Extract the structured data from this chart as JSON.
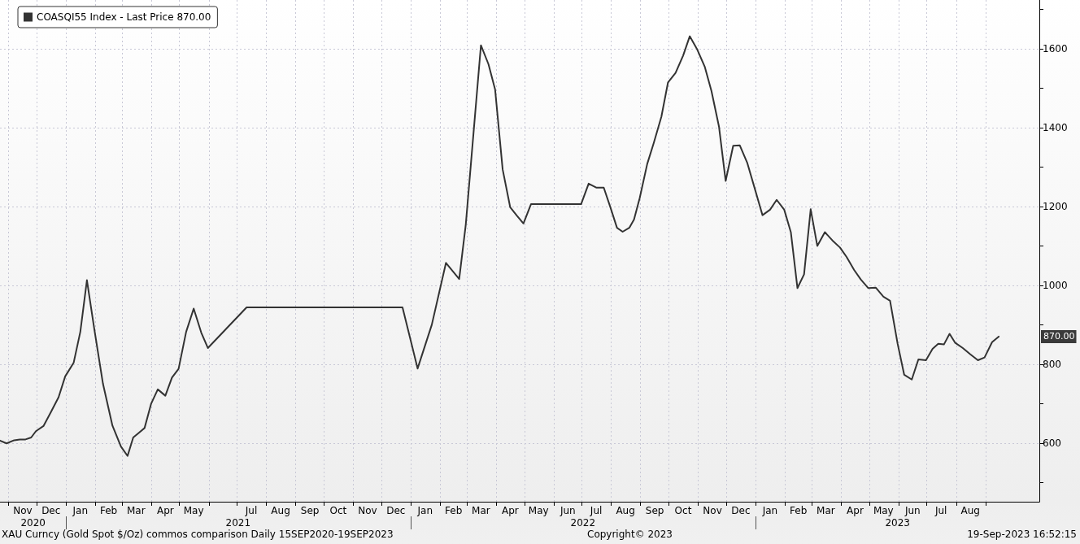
{
  "chart_data": {
    "type": "line",
    "x": [
      "2020-10-23",
      "2020-10-30",
      "2020-11-07",
      "2020-11-13",
      "2020-11-19",
      "2020-11-25",
      "2020-11-30",
      "2020-12-08",
      "2020-12-16",
      "2020-12-24",
      "2020-12-31",
      "2021-01-09",
      "2021-01-16",
      "2021-01-23",
      "2021-01-31",
      "2021-02-09",
      "2021-02-19",
      "2021-02-28",
      "2021-03-07",
      "2021-03-13",
      "2021-03-19",
      "2021-03-25",
      "2021-04-01",
      "2021-04-08",
      "2021-04-16",
      "2021-04-23",
      "2021-04-30",
      "2021-05-08",
      "2021-05-16",
      "2021-05-24",
      "2021-05-31",
      "2021-07-11",
      "2021-12-23",
      "2022-01-08",
      "2022-01-23",
      "2022-02-07",
      "2022-02-21",
      "2022-02-28",
      "2022-03-16",
      "2022-03-24",
      "2022-03-31",
      "2022-04-08",
      "2022-04-16",
      "2022-04-23",
      "2022-04-30",
      "2022-05-08",
      "2022-06-30",
      "2022-07-08",
      "2022-07-16",
      "2022-07-24",
      "2022-07-31",
      "2022-08-07",
      "2022-08-13",
      "2022-08-20",
      "2022-08-25",
      "2022-08-31",
      "2022-09-08",
      "2022-09-15",
      "2022-09-23",
      "2022-09-30",
      "2022-10-08",
      "2022-10-16",
      "2022-10-23",
      "2022-10-31",
      "2022-11-08",
      "2022-11-15",
      "2022-11-23",
      "2022-11-30",
      "2022-12-08",
      "2022-12-15",
      "2022-12-23",
      "2022-12-31",
      "2023-01-08",
      "2023-01-16",
      "2023-01-23",
      "2023-01-31",
      "2023-02-07",
      "2023-02-14",
      "2023-02-21",
      "2023-02-28",
      "2023-03-07",
      "2023-03-15",
      "2023-03-23",
      "2023-03-31",
      "2023-04-07",
      "2023-04-15",
      "2023-04-22",
      "2023-04-30",
      "2023-05-08",
      "2023-05-16",
      "2023-05-23",
      "2023-05-31",
      "2023-06-07",
      "2023-06-15",
      "2023-06-22",
      "2023-06-30",
      "2023-07-07",
      "2023-07-13",
      "2023-07-19",
      "2023-07-25",
      "2023-07-31",
      "2023-08-08",
      "2023-08-16",
      "2023-08-24",
      "2023-08-31",
      "2023-09-08",
      "2023-09-15"
    ],
    "series": [
      {
        "name": "COASQI55 Index - Last Price 870.00",
        "color": "#333333",
        "values": [
          606,
          599,
          607,
          609,
          609,
          614,
          630,
          643,
          679,
          716,
          769,
          804,
          882,
          1013,
          886,
          750,
          644,
          591,
          567,
          614,
          626,
          638,
          700,
          736,
          720,
          766,
          788,
          882,
          941,
          880,
          841,
          944,
          944,
          789,
          900,
          1057,
          1016,
          1155,
          1609,
          1561,
          1497,
          1294,
          1198,
          1177,
          1157,
          1206,
          1206,
          1258,
          1248,
          1248,
          1198,
          1146,
          1136,
          1146,
          1167,
          1221,
          1308,
          1362,
          1428,
          1515,
          1539,
          1583,
          1632,
          1598,
          1554,
          1493,
          1402,
          1265,
          1354,
          1355,
          1310,
          1244,
          1178,
          1192,
          1217,
          1192,
          1135,
          993,
          1028,
          1193,
          1100,
          1135,
          1114,
          1096,
          1072,
          1039,
          1015,
          993,
          994,
          971,
          961,
          852,
          773,
          761,
          812,
          810,
          839,
          852,
          850,
          877,
          854,
          841,
          825,
          810,
          817,
          856,
          870
        ]
      }
    ],
    "xlim": [
      "2020-10-23",
      "2023-10-28"
    ],
    "xticks": [
      {
        "value": "2020-11-01",
        "label": null
      },
      {
        "value": "2020-11-16",
        "label": "Nov"
      },
      {
        "value": "2020-12-01",
        "label": null
      },
      {
        "value": "2020-12-16",
        "label": "Dec"
      },
      {
        "value": "2021-01-01",
        "label": null
      },
      {
        "value": "2021-01-16",
        "label": "Jan"
      },
      {
        "value": "2021-02-01",
        "label": null
      },
      {
        "value": "2021-02-15",
        "label": "Feb"
      },
      {
        "value": "2021-03-01",
        "label": null
      },
      {
        "value": "2021-03-16",
        "label": "Mar"
      },
      {
        "value": "2021-04-01",
        "label": null
      },
      {
        "value": "2021-04-16",
        "label": "Apr"
      },
      {
        "value": "2021-05-01",
        "label": null
      },
      {
        "value": "2021-05-16",
        "label": "May"
      },
      {
        "value": "2021-06-01",
        "label": null
      },
      {
        "value": "2021-07-01",
        "label": null
      },
      {
        "value": "2021-07-16",
        "label": "Jul"
      },
      {
        "value": "2021-08-01",
        "label": null
      },
      {
        "value": "2021-08-16",
        "label": "Aug"
      },
      {
        "value": "2021-09-01",
        "label": null
      },
      {
        "value": "2021-09-16",
        "label": "Sep"
      },
      {
        "value": "2021-10-01",
        "label": null
      },
      {
        "value": "2021-10-16",
        "label": "Oct"
      },
      {
        "value": "2021-11-01",
        "label": null
      },
      {
        "value": "2021-11-16",
        "label": "Nov"
      },
      {
        "value": "2021-12-01",
        "label": null
      },
      {
        "value": "2021-12-16",
        "label": "Dec"
      },
      {
        "value": "2022-01-01",
        "label": null
      },
      {
        "value": "2022-01-16",
        "label": "Jan"
      },
      {
        "value": "2022-02-01",
        "label": null
      },
      {
        "value": "2022-02-15",
        "label": "Feb"
      },
      {
        "value": "2022-03-01",
        "label": null
      },
      {
        "value": "2022-03-16",
        "label": "Mar"
      },
      {
        "value": "2022-04-01",
        "label": null
      },
      {
        "value": "2022-04-16",
        "label": "Apr"
      },
      {
        "value": "2022-05-01",
        "label": null
      },
      {
        "value": "2022-05-16",
        "label": "May"
      },
      {
        "value": "2022-06-01",
        "label": null
      },
      {
        "value": "2022-06-16",
        "label": "Jun"
      },
      {
        "value": "2022-07-01",
        "label": null
      },
      {
        "value": "2022-07-16",
        "label": "Jul"
      },
      {
        "value": "2022-08-01",
        "label": null
      },
      {
        "value": "2022-08-16",
        "label": "Aug"
      },
      {
        "value": "2022-09-01",
        "label": null
      },
      {
        "value": "2022-09-16",
        "label": "Sep"
      },
      {
        "value": "2022-10-01",
        "label": null
      },
      {
        "value": "2022-10-16",
        "label": "Oct"
      },
      {
        "value": "2022-11-01",
        "label": null
      },
      {
        "value": "2022-11-16",
        "label": "Nov"
      },
      {
        "value": "2022-12-01",
        "label": null
      },
      {
        "value": "2022-12-16",
        "label": "Dec"
      },
      {
        "value": "2023-01-01",
        "label": null
      },
      {
        "value": "2023-01-16",
        "label": "Jan"
      },
      {
        "value": "2023-02-01",
        "label": null
      },
      {
        "value": "2023-02-15",
        "label": "Feb"
      },
      {
        "value": "2023-03-01",
        "label": null
      },
      {
        "value": "2023-03-16",
        "label": "Mar"
      },
      {
        "value": "2023-04-01",
        "label": null
      },
      {
        "value": "2023-04-16",
        "label": "Apr"
      },
      {
        "value": "2023-05-01",
        "label": null
      },
      {
        "value": "2023-05-16",
        "label": "May"
      },
      {
        "value": "2023-06-01",
        "label": null
      },
      {
        "value": "2023-06-16",
        "label": "Jun"
      },
      {
        "value": "2023-07-01",
        "label": null
      },
      {
        "value": "2023-07-16",
        "label": "Jul"
      },
      {
        "value": "2023-08-01",
        "label": null
      },
      {
        "value": "2023-08-16",
        "label": "Aug"
      },
      {
        "value": "2023-09-01",
        "label": null
      }
    ],
    "x2lim": [
      "2020-10-23",
      "2023-10-28"
    ],
    "x2ticks": [
      {
        "value": "2020-11-27",
        "label": "2020"
      },
      {
        "value": "2021-01-01",
        "label": null
      },
      {
        "value": "2021-07-02",
        "label": "2021"
      },
      {
        "value": "2022-01-01",
        "label": null
      },
      {
        "value": "2022-07-02",
        "label": "2022"
      },
      {
        "value": "2023-01-01",
        "label": null
      },
      {
        "value": "2023-05-31",
        "label": "2023"
      }
    ],
    "ylim": [
      451,
      1724
    ],
    "yticks": [
      {
        "value": 500,
        "label": null
      },
      600,
      {
        "value": 700,
        "label": null
      },
      800,
      {
        "value": 900,
        "label": null
      },
      1000,
      {
        "value": 1100,
        "label": null
      },
      1200,
      {
        "value": 1300,
        "label": null
      },
      1400,
      {
        "value": 1500,
        "label": null
      },
      1600,
      {
        "value": 1700,
        "label": null
      }
    ],
    "grid": true,
    "legend": "top left",
    "line_style": "solid",
    "annotations": [
      "870.00",
      "XAU Curncy (Gold Spot $/Oz) commos comparison Daily 15SEP2020-19SEP2023",
      "Copyright© 2023",
      "19-Sep-2023 16:52:15"
    ]
  }
}
